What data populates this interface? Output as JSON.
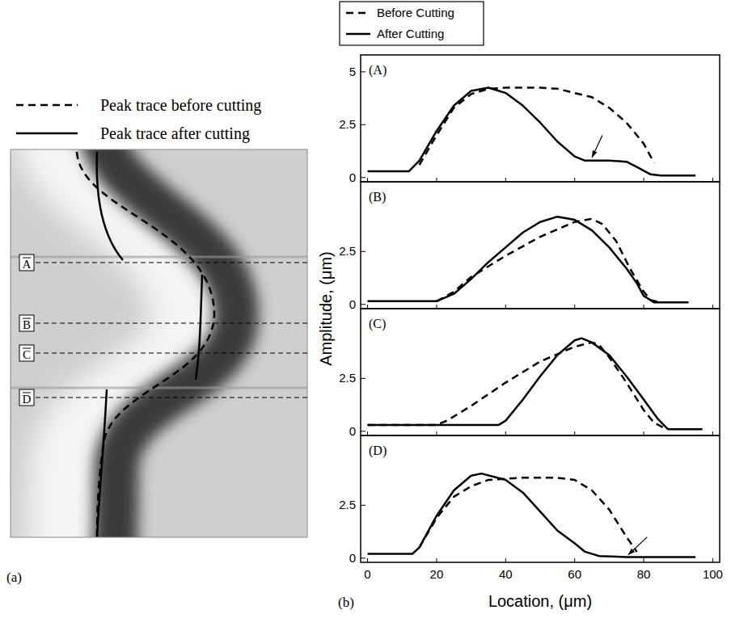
{
  "panel_a": {
    "label": "(a)",
    "legend": [
      {
        "text": "Peak trace before cutting",
        "line_style": "dashed"
      },
      {
        "text": "Peak trace after cutting",
        "line_style": "solid"
      }
    ],
    "sections": [
      "A",
      "B",
      "C",
      "D"
    ]
  },
  "panel_b": {
    "label": "(b)",
    "ylabel": "Amplitude,  (μm)",
    "xlabel": "Location,  (μm)"
  },
  "chart_data": [
    {
      "type": "line",
      "title": "(A)",
      "legend": "top",
      "tick_labels": "y",
      "xlim": [
        -2,
        102
      ],
      "xticks": [
        0,
        20,
        40,
        60,
        80,
        100
      ],
      "ylim": [
        -0.2,
        5.8
      ],
      "yticks": [
        0,
        2.5,
        5
      ],
      "series": [
        {
          "name": "Before Cutting",
          "color": "#000000",
          "line_style": "dashed",
          "x": [
            15,
            20,
            25,
            30,
            35,
            40,
            50,
            55,
            60,
            65,
            70,
            75,
            80,
            83
          ],
          "values": [
            0.6,
            2.0,
            3.3,
            3.95,
            4.2,
            4.25,
            4.25,
            4.2,
            4.0,
            3.8,
            3.3,
            2.6,
            1.6,
            0.7
          ]
        },
        {
          "name": "After Cutting",
          "color": "#000000",
          "line_style": "solid",
          "x": [
            0,
            12,
            15,
            20,
            25,
            30,
            35,
            40,
            45,
            50,
            55,
            60,
            63,
            70,
            75,
            78,
            82,
            85,
            95
          ],
          "values": [
            0.3,
            0.3,
            0.8,
            2.2,
            3.4,
            4.1,
            4.25,
            4.0,
            3.4,
            2.6,
            1.7,
            1.0,
            0.8,
            0.8,
            0.75,
            0.5,
            0.15,
            0.1,
            0.1
          ]
        }
      ]
    },
    {
      "type": "line",
      "title": "(B)",
      "tick_labels": "y",
      "xlim": [
        -2,
        102
      ],
      "xticks": [
        0,
        20,
        40,
        60,
        80,
        100
      ],
      "ylim": [
        -0.2,
        5.8
      ],
      "yticks": [
        0,
        2.5
      ],
      "series": [
        {
          "name": "Before Cutting",
          "color": "#000000",
          "line_style": "dashed",
          "x": [
            20,
            25,
            30,
            40,
            50,
            60,
            65,
            68,
            72,
            76,
            80,
            82,
            85
          ],
          "values": [
            0.15,
            0.6,
            1.3,
            2.3,
            3.2,
            3.9,
            4.05,
            3.8,
            3.0,
            1.7,
            0.6,
            0.2,
            0.1
          ]
        },
        {
          "name": "After Cutting",
          "color": "#000000",
          "line_style": "solid",
          "x": [
            0,
            20,
            25,
            30,
            35,
            40,
            45,
            50,
            55,
            60,
            65,
            70,
            75,
            78,
            80,
            83,
            93
          ],
          "values": [
            0.15,
            0.15,
            0.5,
            1.2,
            2.0,
            2.7,
            3.4,
            3.9,
            4.15,
            4.0,
            3.5,
            2.7,
            1.7,
            1.0,
            0.4,
            0.1,
            0.1
          ]
        }
      ]
    },
    {
      "type": "line",
      "title": "(C)",
      "tick_labels": "y",
      "xlim": [
        -2,
        102
      ],
      "xticks": [
        0,
        20,
        40,
        60,
        80,
        100
      ],
      "ylim": [
        -0.2,
        5.8
      ],
      "yticks": [
        0,
        2.5
      ],
      "series": [
        {
          "name": "Before Cutting",
          "color": "#000000",
          "line_style": "dashed",
          "x": [
            0,
            20,
            23,
            30,
            40,
            50,
            60,
            65,
            67,
            70,
            75,
            80,
            83,
            86
          ],
          "values": [
            0.3,
            0.3,
            0.5,
            1.2,
            2.3,
            3.3,
            4.0,
            4.2,
            4.1,
            3.5,
            2.3,
            1.0,
            0.4,
            0.15
          ]
        },
        {
          "name": "After Cutting",
          "color": "#000000",
          "line_style": "solid",
          "x": [
            0,
            38,
            40,
            45,
            50,
            55,
            60,
            62,
            65,
            70,
            75,
            80,
            84,
            87,
            97
          ],
          "values": [
            0.3,
            0.3,
            0.5,
            1.5,
            2.6,
            3.6,
            4.3,
            4.4,
            4.2,
            3.6,
            2.6,
            1.5,
            0.6,
            0.1,
            0.1
          ]
        }
      ]
    },
    {
      "type": "line",
      "title": "(D)",
      "tick_labels": true,
      "xlim": [
        -2,
        102
      ],
      "xticks": [
        0,
        20,
        40,
        60,
        80,
        100
      ],
      "ylim": [
        -0.2,
        5.8
      ],
      "yticks": [
        0,
        2.5
      ],
      "series": [
        {
          "name": "Before Cutting",
          "color": "#000000",
          "line_style": "dashed",
          "x": [
            15,
            20,
            25,
            30,
            35,
            45,
            55,
            60,
            65,
            70,
            75,
            78
          ],
          "values": [
            0.5,
            1.9,
            2.9,
            3.4,
            3.7,
            3.8,
            3.8,
            3.7,
            3.2,
            2.3,
            1.0,
            0.3
          ]
        },
        {
          "name": "After Cutting",
          "color": "#000000",
          "line_style": "solid",
          "x": [
            0,
            13,
            15,
            20,
            25,
            30,
            33,
            40,
            45,
            50,
            55,
            60,
            63,
            67,
            75,
            95
          ],
          "values": [
            0.2,
            0.2,
            0.5,
            2.0,
            3.2,
            3.9,
            4.0,
            3.7,
            3.1,
            2.2,
            1.3,
            0.7,
            0.3,
            0.1,
            0.05,
            0.05
          ]
        }
      ]
    }
  ]
}
